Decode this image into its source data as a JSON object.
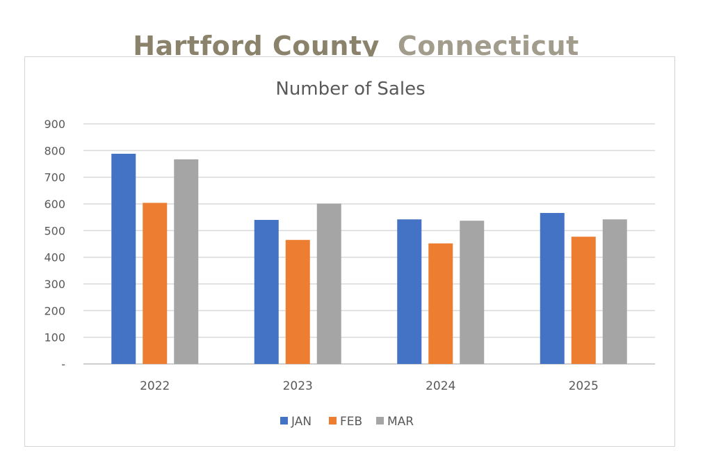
{
  "header": {
    "county": "Hartford County",
    "state": "Connecticut"
  },
  "chart_data": {
    "type": "bar",
    "title": "Number of Sales",
    "categories": [
      "2022",
      "2023",
      "2024",
      "2025"
    ],
    "series": [
      {
        "name": "JAN",
        "color": "#4472c4",
        "values": [
          788,
          540,
          542,
          566
        ]
      },
      {
        "name": "FEB",
        "color": "#ed7d31",
        "values": [
          604,
          465,
          452,
          477
        ]
      },
      {
        "name": "MAR",
        "color": "#a5a5a5",
        "values": [
          767,
          601,
          537,
          542
        ]
      }
    ],
    "ylim": [
      0,
      900
    ],
    "yticks": [
      0,
      100,
      200,
      300,
      400,
      500,
      600,
      700,
      800,
      900
    ],
    "ytick_labels": [
      "-",
      "100",
      "200",
      "300",
      "400",
      "500",
      "600",
      "700",
      "800",
      "900"
    ],
    "grid": true,
    "legend_position": "bottom"
  }
}
